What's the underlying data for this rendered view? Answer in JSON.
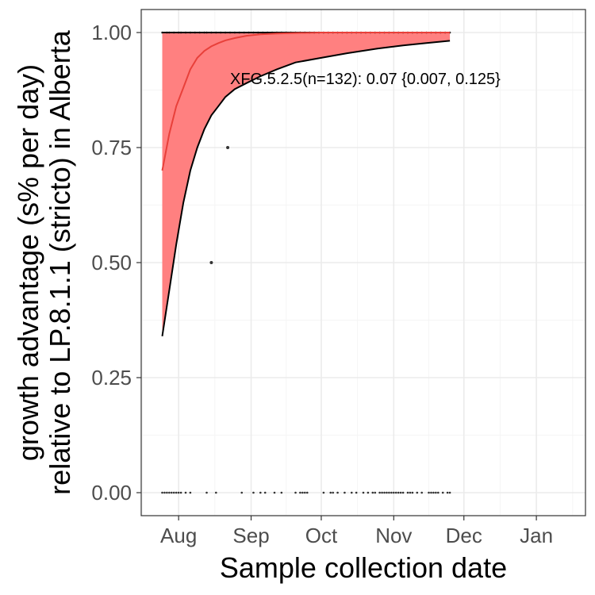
{
  "chart_data": {
    "type": "scatter",
    "xlabel": "Sample collection date",
    "ylabel_line1": "growth advantage (s% per day)",
    "ylabel_line2": "relative to LP.8.1.1 (stricto) in Alberta",
    "annotation": "XFG.5.2.5(n=132): 0.07 {0.007, 0.125}",
    "x_range": [
      "2025-07-16",
      "2026-01-22"
    ],
    "ylim": [
      -0.05,
      1.05
    ],
    "y_ticks": [
      0.0,
      0.25,
      0.5,
      0.75,
      1.0
    ],
    "y_tick_labels": [
      "0.00",
      "0.25",
      "0.50",
      "0.75",
      "1.00"
    ],
    "x_ticks": [
      "2025-08-01",
      "2025-09-01",
      "2025-10-01",
      "2025-11-01",
      "2025-12-01",
      "2026-01-01"
    ],
    "x_tick_labels": [
      "Aug",
      "Sep",
      "Oct",
      "Nov",
      "Dec",
      "Jan"
    ],
    "grid": true,
    "legend": "none",
    "colors": {
      "ribbon": "#ff8080",
      "fit_line": "#e8403a",
      "bound_line": "#000000",
      "points": "#333333",
      "grid_major": "#ebebeb",
      "grid_minor": "#f5f5f5",
      "panel_border": "#333333"
    },
    "fit": {
      "x": [
        "2025-07-25",
        "2025-07-28",
        "2025-07-31",
        "2025-08-03",
        "2025-08-06",
        "2025-08-09",
        "2025-08-12",
        "2025-08-15",
        "2025-08-18",
        "2025-08-21",
        "2025-08-25",
        "2025-08-30",
        "2025-09-05",
        "2025-09-12",
        "2025-09-20",
        "2025-10-01",
        "2025-10-12",
        "2025-10-25",
        "2025-11-05",
        "2025-11-15",
        "2025-11-25"
      ],
      "mid": [
        0.7,
        0.78,
        0.84,
        0.88,
        0.92,
        0.945,
        0.96,
        0.97,
        0.977,
        0.983,
        0.988,
        0.993,
        0.996,
        0.998,
        0.999,
        1.0,
        1.0,
        1.0,
        1.0,
        1.0,
        1.0
      ],
      "lower": [
        0.34,
        0.44,
        0.54,
        0.63,
        0.7,
        0.75,
        0.79,
        0.82,
        0.84,
        0.86,
        0.877,
        0.89,
        0.905,
        0.92,
        0.935,
        0.945,
        0.955,
        0.965,
        0.972,
        0.977,
        0.982
      ],
      "upper": [
        1.0,
        1.0,
        1.0,
        1.0,
        1.0,
        1.0,
        1.0,
        1.0,
        1.0,
        1.0,
        1.0,
        1.0,
        1.0,
        1.0,
        1.0,
        1.0,
        1.0,
        1.0,
        1.0,
        1.0,
        1.0
      ]
    },
    "points": {
      "ones": [
        "2025-07-25",
        "2025-07-27",
        "2025-07-28",
        "2025-07-30",
        "2025-08-01",
        "2025-08-02",
        "2025-08-04",
        "2025-08-06",
        "2025-08-08",
        "2025-08-10",
        "2025-08-12",
        "2025-08-13",
        "2025-08-15",
        "2025-08-17",
        "2025-08-19",
        "2025-08-21",
        "2025-08-23",
        "2025-08-25",
        "2025-08-27",
        "2025-08-29",
        "2025-08-31",
        "2025-09-02",
        "2025-09-04",
        "2025-09-06",
        "2025-09-08",
        "2025-09-10",
        "2025-09-12",
        "2025-09-14",
        "2025-09-16",
        "2025-09-18",
        "2025-09-20",
        "2025-09-22",
        "2025-09-24",
        "2025-09-26",
        "2025-09-28",
        "2025-09-30",
        "2025-10-02",
        "2025-10-04",
        "2025-10-06",
        "2025-10-08",
        "2025-10-10",
        "2025-10-12",
        "2025-10-14",
        "2025-10-16",
        "2025-10-18",
        "2025-10-20",
        "2025-10-22",
        "2025-10-24",
        "2025-10-26",
        "2025-10-28",
        "2025-10-30",
        "2025-11-01",
        "2025-11-03",
        "2025-11-05",
        "2025-11-07",
        "2025-11-09",
        "2025-11-11",
        "2025-11-13",
        "2025-11-15",
        "2025-11-17",
        "2025-11-19",
        "2025-11-21",
        "2025-11-23",
        "2025-11-25"
      ],
      "zeros": [
        "2025-07-25",
        "2025-07-26",
        "2025-07-27",
        "2025-07-28",
        "2025-07-29",
        "2025-07-30",
        "2025-07-31",
        "2025-08-01",
        "2025-08-02",
        "2025-08-04",
        "2025-08-06",
        "2025-08-13",
        "2025-08-17",
        "2025-08-28",
        "2025-09-02",
        "2025-09-05",
        "2025-09-07",
        "2025-09-11",
        "2025-09-14",
        "2025-09-20",
        "2025-09-22",
        "2025-09-23",
        "2025-09-24",
        "2025-09-25",
        "2025-10-02",
        "2025-10-05",
        "2025-10-06",
        "2025-10-08",
        "2025-10-11",
        "2025-10-14",
        "2025-10-16",
        "2025-10-19",
        "2025-10-21",
        "2025-10-23",
        "2025-10-24",
        "2025-10-26",
        "2025-10-27",
        "2025-10-28",
        "2025-10-29",
        "2025-10-30",
        "2025-10-31",
        "2025-11-01",
        "2025-11-02",
        "2025-11-03",
        "2025-11-04",
        "2025-11-05",
        "2025-11-07",
        "2025-11-08",
        "2025-11-09",
        "2025-11-11",
        "2025-11-13",
        "2025-11-16",
        "2025-11-17",
        "2025-11-18",
        "2025-11-19",
        "2025-11-20",
        "2025-11-22",
        "2025-11-24",
        "2025-11-25"
      ],
      "other": [
        {
          "x": "2025-08-15",
          "y": 0.5
        },
        {
          "x": "2025-08-22",
          "y": 0.75
        }
      ]
    }
  }
}
